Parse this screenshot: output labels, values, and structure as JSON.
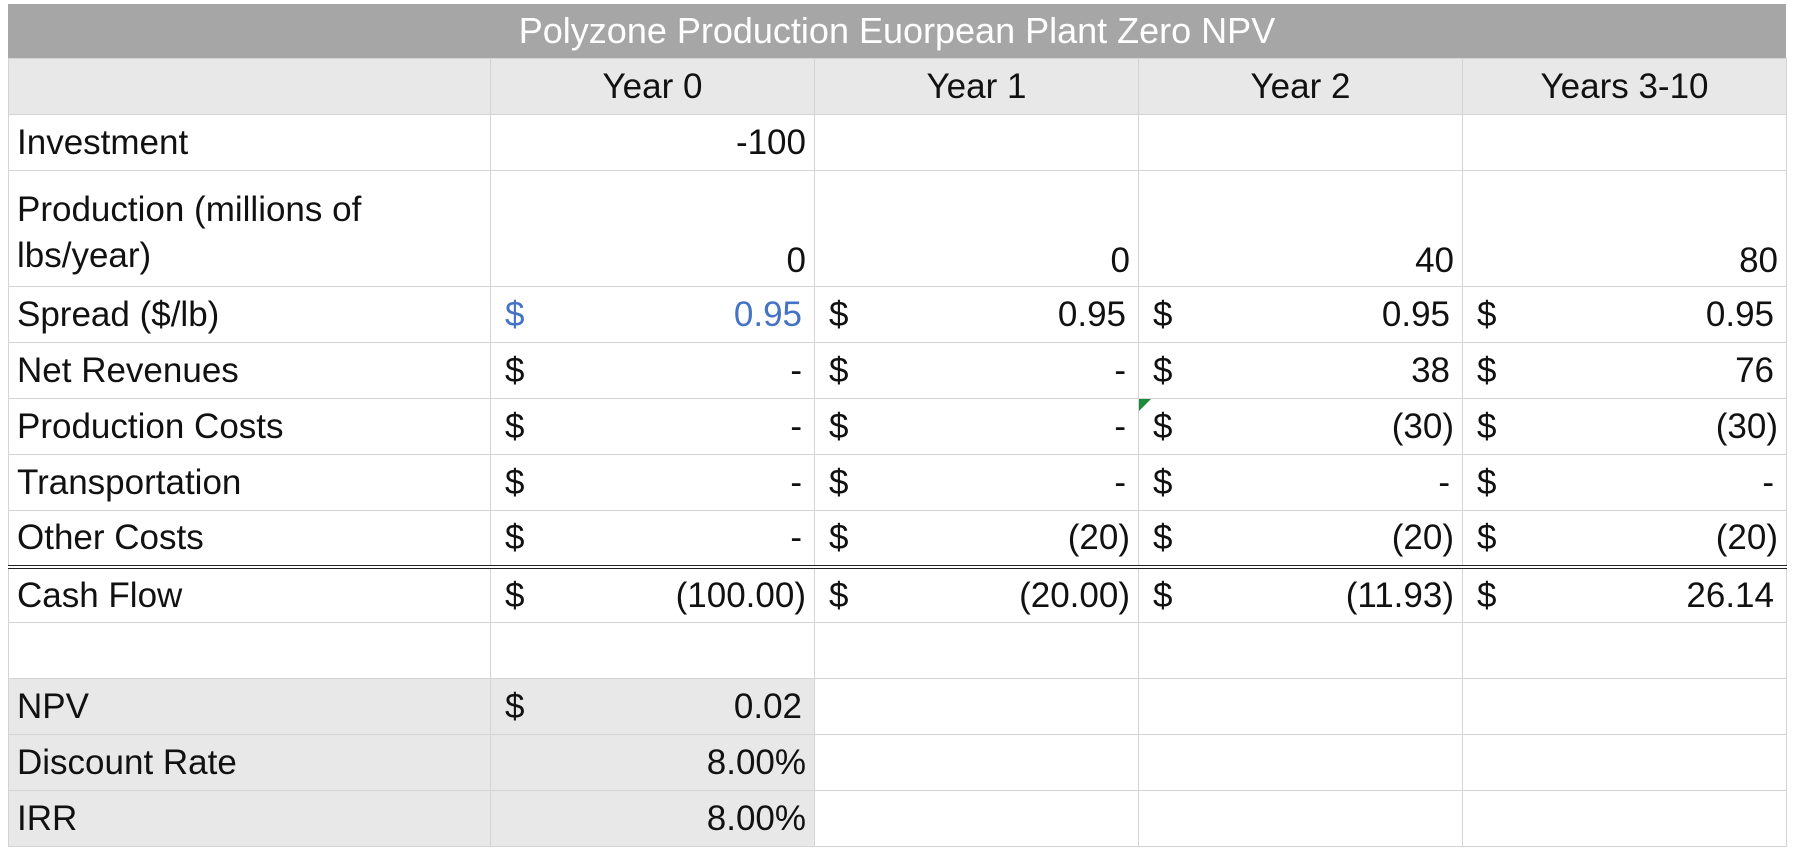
{
  "title": "Polyzone Production Euorpean Plant Zero NPV",
  "headers": [
    "",
    "Year 0",
    "Year 1",
    "Year 2",
    "Years 3-10"
  ],
  "rows": {
    "investment": {
      "label": "Investment",
      "values": [
        "-100",
        "",
        "",
        ""
      ]
    },
    "production": {
      "label_line1": "Production (millions of",
      "label_line2": "lbs/year)",
      "values": [
        "0",
        "0",
        "40",
        "80"
      ]
    },
    "spread": {
      "label": "Spread ($/lb)",
      "values": [
        "0.95",
        "0.95",
        "0.95",
        "0.95"
      ]
    },
    "net_revenues": {
      "label": "Net Revenues",
      "values": [
        "-",
        "-",
        "38",
        "76"
      ]
    },
    "production_costs": {
      "label": "Production Costs",
      "values": [
        "-",
        "-",
        "(30)",
        "(30)"
      ]
    },
    "transportation": {
      "label": "Transportation",
      "values": [
        "-",
        "-",
        "-",
        "-"
      ]
    },
    "other_costs": {
      "label": "Other Costs",
      "values": [
        "-",
        "(20)",
        "(20)",
        "(20)"
      ]
    },
    "cash_flow": {
      "label": "Cash Flow",
      "values": [
        "(100.00)",
        "(20.00)",
        "(11.93)",
        "26.14"
      ]
    }
  },
  "currency_symbol": "$",
  "summary": {
    "npv": {
      "label": "NPV",
      "value": "0.02"
    },
    "discount_rate": {
      "label": "Discount Rate",
      "value": "8.00%"
    },
    "irr": {
      "label": "IRR",
      "value": "8.00%"
    }
  },
  "colors": {
    "header_bg": "#a6a6a6",
    "subheader_bg": "#e8e8e8",
    "input_blue": "#4472c4",
    "comment_marker": "#1e8a3c"
  }
}
